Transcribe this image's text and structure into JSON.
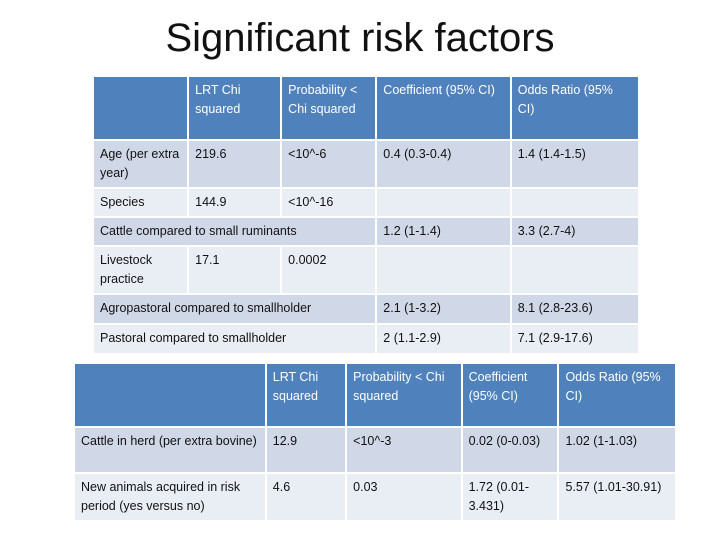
{
  "slide": {
    "title": "Significant risk factors"
  },
  "table1": {
    "headers": [
      "",
      "LRT Chi squared",
      "Probability < Chi squared",
      "Coefficient (95% CI)",
      "Odds Ratio (95% CI)"
    ],
    "rows": [
      {
        "factor": "Age (per extra year)",
        "lrt": "219.6",
        "prob": "<10^-6",
        "coef": "0.4 (0.3-0.4)",
        "odds": "1.4 (1.4-1.5)"
      },
      {
        "factor": "Species",
        "lrt": "144.9",
        "prob": "<10^-16",
        "coef": "",
        "odds": ""
      },
      {
        "factor": "Cattle compared to small ruminants",
        "coef": "1.2 (1-1.4)",
        "odds": "3.3 (2.7-4)"
      },
      {
        "factor": "Livestock practice",
        "lrt": "17.1",
        "prob": "0.0002",
        "coef": "",
        "odds": ""
      },
      {
        "factor": "Agropastoral compared to smallholder",
        "coef": "2.1 (1-3.2)",
        "odds": "8.1 (2.8-23.6)"
      },
      {
        "factor": "Pastoral compared to smallholder",
        "coef": "2 (1.1-2.9)",
        "odds": "7.1 (2.9-17.6)"
      }
    ]
  },
  "table2": {
    "headers": [
      "",
      "LRT Chi squared",
      "Probability < Chi squared",
      "Coefficient (95% CI)",
      "Odds Ratio (95% CI)"
    ],
    "rows": [
      {
        "factor": "Cattle in herd (per extra bovine)",
        "lrt": "12.9",
        "prob": "<10^-3",
        "coef": "0.02 (0-0.03)",
        "odds": "1.02 (1-1.03)"
      },
      {
        "factor": "New animals acquired in risk period (yes versus no)",
        "lrt": "4.6",
        "prob": "0.03",
        "coef": "1.72 (0.01-3.431)",
        "odds": "5.57 (1.01-30.91)"
      }
    ]
  }
}
